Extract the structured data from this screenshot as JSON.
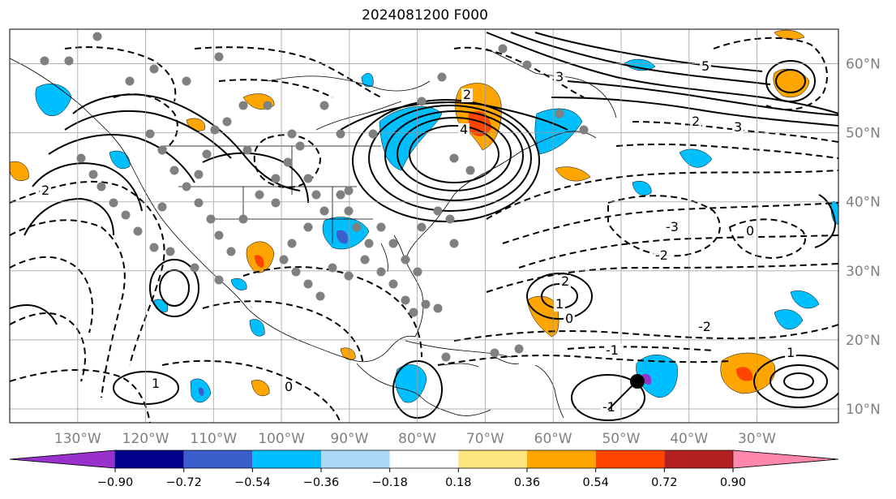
{
  "title": "2024081200 F000",
  "map": {
    "lon_range": [
      -140,
      -18
    ],
    "lat_range": [
      8,
      65
    ],
    "lon_ticks": [
      {
        "value": -130,
        "label": "130°W"
      },
      {
        "value": -120,
        "label": "120°W"
      },
      {
        "value": -110,
        "label": "110°W"
      },
      {
        "value": -100,
        "label": "100°W"
      },
      {
        "value": -90,
        "label": "90°W"
      },
      {
        "value": -80,
        "label": "80°W"
      },
      {
        "value": -70,
        "label": "70°W"
      },
      {
        "value": -60,
        "label": "60°W"
      },
      {
        "value": -50,
        "label": "50°W"
      },
      {
        "value": -40,
        "label": "40°W"
      },
      {
        "value": -30,
        "label": "30°W"
      }
    ],
    "lat_ticks": [
      {
        "value": 10,
        "label": "10°N"
      },
      {
        "value": 20,
        "label": "20°N"
      },
      {
        "value": 30,
        "label": "30°N"
      },
      {
        "value": 40,
        "label": "40°N"
      },
      {
        "value": 50,
        "label": "50°N"
      },
      {
        "value": 60,
        "label": "60°N"
      }
    ],
    "gridlines": true,
    "contour_labels": [
      "2",
      "4",
      "3",
      "5",
      "2",
      "1",
      "0",
      "-1",
      "-2",
      "-3",
      "0",
      "-2",
      "1",
      "2",
      "3",
      "-1",
      "0",
      "1",
      "2"
    ],
    "marker_color": "#000000",
    "station_dot_color": "#808080"
  },
  "colorbar": {
    "labels": [
      "−0.90",
      "−0.72",
      "−0.54",
      "−0.36",
      "−0.18",
      "0.18",
      "0.36",
      "0.54",
      "0.72",
      "0.90"
    ],
    "colors": [
      "#9932cc",
      "#00008b",
      "#3a5fcd",
      "#00bfff",
      "#add8f6",
      "#ffffff",
      "#ffe680",
      "#ffa500",
      "#ff4500",
      "#b22222",
      "#ff88aa"
    ]
  }
}
